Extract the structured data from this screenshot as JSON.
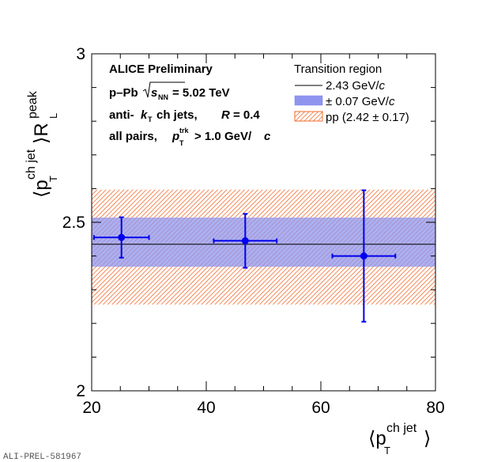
{
  "chart_data": {
    "type": "scatter",
    "title": "",
    "xlabel": {
      "main": "⟨p",
      "sub": "T",
      "sup": "ch jet",
      "close": "⟩"
    },
    "ylabel": {
      "main": "⟨p",
      "sub": "T",
      "sup": "ch jet",
      "close": "⟩R",
      "sub2": "L",
      "sup2": "peak"
    },
    "xlim": [
      20,
      80
    ],
    "ylim": [
      2,
      3
    ],
    "x_ticks": [
      "20",
      "40",
      "60",
      "80"
    ],
    "y_ticks": [
      "2",
      "2.5",
      "3"
    ],
    "grid": false,
    "series": [
      {
        "name": "data",
        "color": "#0000ee",
        "points": [
          {
            "x": 25.2,
            "y": 2.455,
            "xerr": [
              4.8,
              4.8
            ],
            "yerr": [
              0.06,
              0.06
            ]
          },
          {
            "x": 46.8,
            "y": 2.445,
            "xerr": [
              5.5,
              5.5
            ],
            "yerr": [
              0.08,
              0.08
            ]
          },
          {
            "x": 67.5,
            "y": 2.4,
            "xerr": [
              5.5,
              5.5
            ],
            "yerr": [
              0.195,
              0.195
            ]
          }
        ]
      }
    ],
    "bands": {
      "line": {
        "value": 2.435,
        "color": "#000000"
      },
      "blue_band": {
        "low": 2.368,
        "high": 2.514,
        "color": "#8f95ee"
      },
      "pp_band": {
        "low": 2.256,
        "high": 2.597,
        "color": "#f26c2e"
      }
    },
    "legend": {
      "placement": "top-right",
      "title": "Transition region",
      "entries": [
        {
          "label": "2.43 GeV/",
          "unit": "c"
        },
        {
          "label": "± 0.07 GeV/",
          "unit": "c"
        },
        {
          "label": "pp (2.42 ± 0.17)"
        }
      ]
    },
    "annotations": {
      "line1": "ALICE Preliminary",
      "line2": {
        "a": "p–Pb",
        "sqrt": "s",
        "sub": "NN",
        "b": "= 5.02 TeV"
      },
      "line3": {
        "a": "anti-",
        "k": "k",
        "sub": "T",
        "b": "ch jets,",
        "R": "R",
        "c": "= 0.4"
      },
      "line4": {
        "a": "all pairs,",
        "p": "p",
        "sub": "T",
        "sup": "trk",
        "b": "> 1.0 GeV/",
        "c": "c"
      }
    }
  },
  "footer": {
    "tag": "ALI-PREL-581967"
  }
}
